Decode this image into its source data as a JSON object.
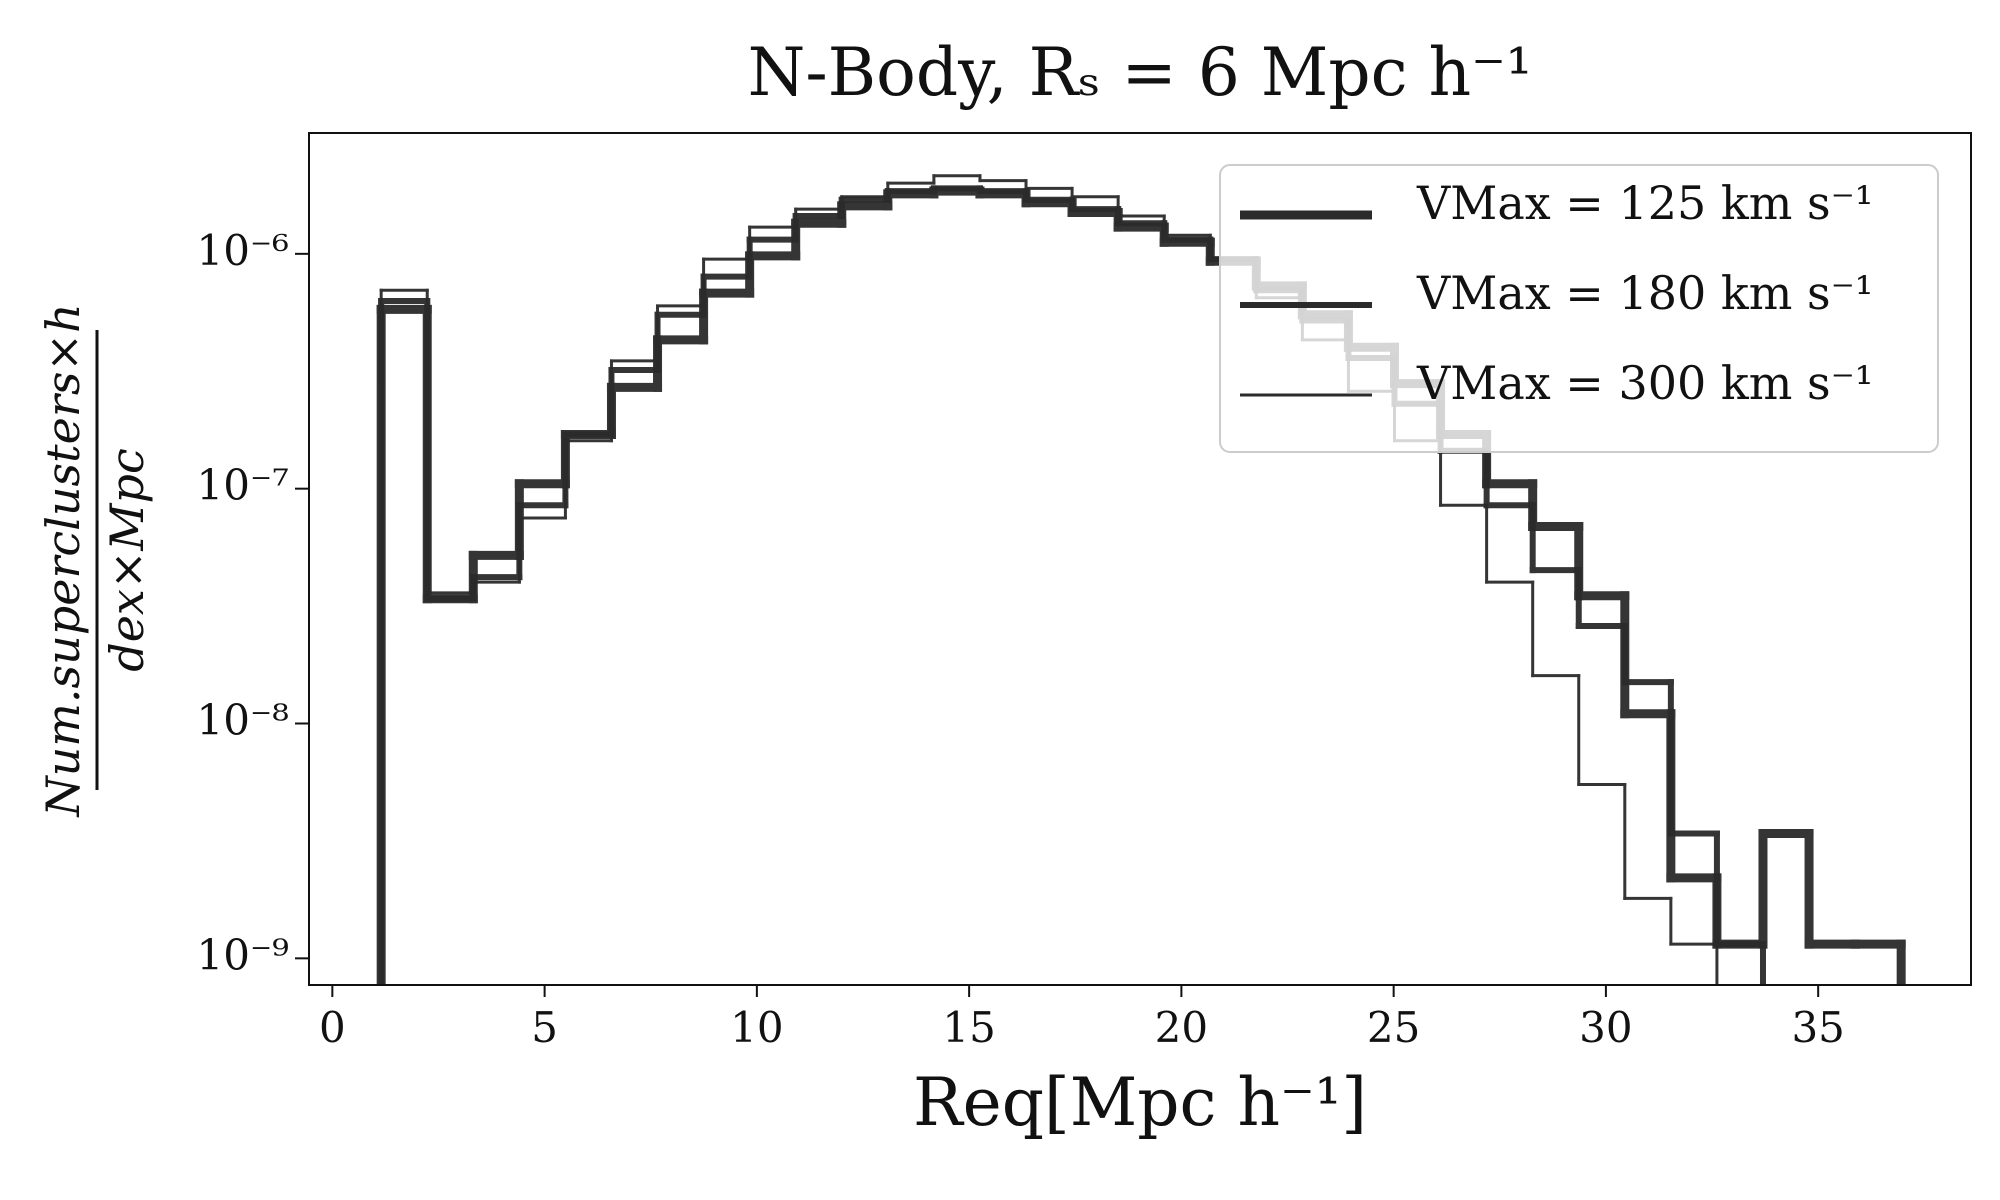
{
  "chart_data": {
    "type": "histogram",
    "title": "N-Body, Rₛ = 6 Mpc h⁻¹",
    "xlabel": "Req[Mpc h⁻¹]",
    "ylabel": {
      "numerator": "Num.superclusters×h",
      "denominator": "dex×Mpc"
    },
    "xlim": [
      -0.55,
      38.6
    ],
    "xticks": [
      0,
      5,
      10,
      15,
      20,
      25,
      30,
      35
    ],
    "ylim": [
      7.7e-10,
      3.27e-06
    ],
    "yscale": "log",
    "yticks": [
      {
        "value": 1e-09,
        "label": "10⁻⁹"
      },
      {
        "value": 1e-08,
        "label": "10⁻⁸"
      },
      {
        "value": 1e-07,
        "label": "10⁻⁷"
      },
      {
        "value": 1e-06,
        "label": "10⁻⁶"
      }
    ],
    "legend": "upper right",
    "bins": [
      1.15,
      2.235,
      3.32,
      4.405,
      5.49,
      6.575,
      7.66,
      8.745,
      9.83,
      10.915,
      12.0,
      13.085,
      14.17,
      15.255,
      16.34,
      17.425,
      18.51,
      19.595,
      20.68,
      21.765,
      22.85,
      23.935,
      25.02,
      26.105,
      27.19,
      28.275,
      29.36,
      30.445,
      31.53,
      32.615,
      33.7,
      34.785,
      35.87,
      36.955
    ],
    "series": [
      {
        "name": "VMax = 125 km s⁻¹",
        "color": "#2b2b2b",
        "values": [
          5.8e-07,
          3.4e-08,
          5.2e-08,
          1.05e-07,
          1.7e-07,
          2.7e-07,
          4.3e-07,
          6.8e-07,
          9.8e-07,
          1.35e-06,
          1.6e-06,
          1.8e-06,
          1.85e-06,
          1.8e-06,
          1.65e-06,
          1.5e-06,
          1.3e-06,
          1.12e-06,
          9.3e-07,
          7.3e-07,
          5.5e-07,
          4e-07,
          2.8e-07,
          1.7e-07,
          1.05e-07,
          6.9e-08,
          3.5e-08,
          1.1e-08,
          2.2e-09,
          1.15e-09,
          3.4e-09,
          1.15e-09,
          1.15e-09
        ]
      },
      {
        "name": "VMax = 180 km s⁻¹",
        "color": "#2b2b2b",
        "values": [
          6.3e-07,
          3.4e-08,
          4.2e-08,
          8.5e-08,
          1.7e-07,
          3.2e-07,
          5.5e-07,
          8e-07,
          1.15e-06,
          1.45e-06,
          1.7e-06,
          1.85e-06,
          1.9e-06,
          1.85e-06,
          1.7e-06,
          1.55e-06,
          1.35e-06,
          1.15e-06,
          9.5e-07,
          7e-07,
          5.2e-07,
          3.6e-07,
          2.3e-07,
          1.45e-07,
          8.5e-08,
          4.5e-08,
          2.6e-08,
          1.5e-08,
          3.4e-09,
          1.15e-09,
          null,
          null,
          null
        ]
      },
      {
        "name": "VMax = 300 km s⁻¹",
        "color": "#2b2b2b",
        "values": [
          7e-07,
          3.6e-08,
          4e-08,
          7.5e-08,
          1.6e-07,
          3.5e-07,
          6e-07,
          9.5e-07,
          1.3e-06,
          1.55e-06,
          1.75e-06,
          2e-06,
          2.15e-06,
          2.05e-06,
          1.9e-06,
          1.75e-06,
          1.45e-06,
          1.2e-06,
          9.5e-07,
          6.5e-07,
          4.3e-07,
          2.6e-07,
          1.6e-07,
          8.5e-08,
          4e-08,
          1.6e-08,
          5.5e-09,
          1.8e-09,
          1.15e-09,
          null,
          null,
          null,
          null
        ]
      }
    ]
  }
}
